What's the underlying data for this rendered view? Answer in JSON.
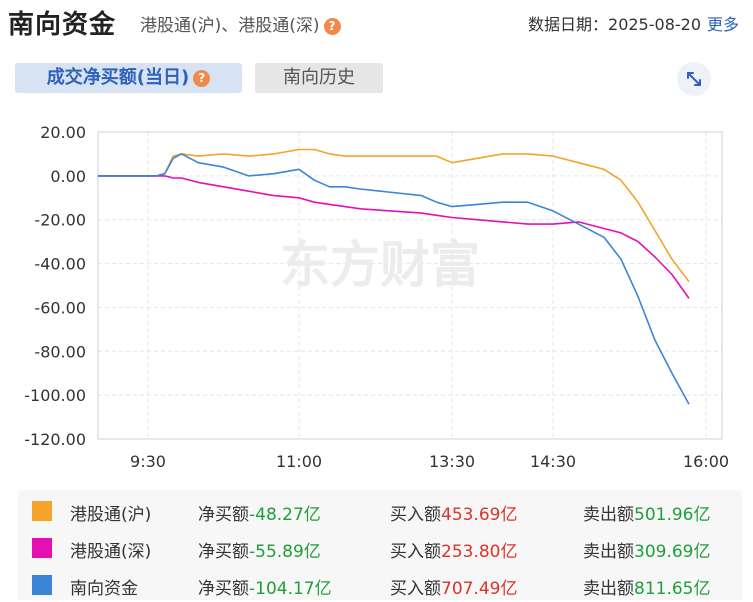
{
  "header": {
    "title": "南向资金",
    "subtitle": "港股通(沪)、港股通(深)",
    "help_glyph": "?",
    "date_label": "数据日期：",
    "date_value": "2025-08-20",
    "more_label": "更多"
  },
  "tabs": [
    {
      "label": "成交净买额(当日)",
      "active": true
    },
    {
      "label": "南向历史",
      "active": false
    }
  ],
  "icons": {
    "help": "help-icon",
    "expand": "expand-icon"
  },
  "watermark": "东方财富",
  "chart_data": {
    "type": "line",
    "y_ticks": [
      "20.00",
      "0.00",
      "-20.00",
      "-40.00",
      "-60.00",
      "-80.00",
      "-100.00",
      "-120.00"
    ],
    "x_ticks": [
      "9:30",
      "11:00",
      "13:30",
      "14:30",
      "16:00"
    ],
    "ylim": [
      -120,
      20
    ],
    "series": [
      {
        "name": "港股通(沪)",
        "color": "#f5a32b",
        "points": [
          [
            "9:00",
            0
          ],
          [
            "9:35",
            0
          ],
          [
            "9:40",
            1
          ],
          [
            "9:45",
            9
          ],
          [
            "9:50",
            10
          ],
          [
            "10:00",
            9
          ],
          [
            "10:15",
            10
          ],
          [
            "10:30",
            9
          ],
          [
            "10:45",
            10
          ],
          [
            "11:00",
            12
          ],
          [
            "11:15",
            12
          ],
          [
            "11:30",
            10
          ],
          [
            "11:45",
            9
          ],
          [
            "12:00",
            9
          ],
          [
            "13:00",
            9
          ],
          [
            "13:15",
            9
          ],
          [
            "13:30",
            6
          ],
          [
            "13:45",
            8
          ],
          [
            "14:00",
            10
          ],
          [
            "14:15",
            10
          ],
          [
            "14:30",
            9
          ],
          [
            "14:45",
            6
          ],
          [
            "15:00",
            3
          ],
          [
            "15:10",
            -2
          ],
          [
            "15:20",
            -12
          ],
          [
            "15:30",
            -25
          ],
          [
            "15:40",
            -38
          ],
          [
            "15:50",
            -48.27
          ]
        ]
      },
      {
        "name": "港股通(深)",
        "color": "#e60fb4",
        "points": [
          [
            "9:00",
            0
          ],
          [
            "9:35",
            0
          ],
          [
            "9:40",
            0
          ],
          [
            "9:45",
            -1
          ],
          [
            "9:50",
            -1
          ],
          [
            "10:00",
            -3
          ],
          [
            "10:15",
            -5
          ],
          [
            "10:30",
            -7
          ],
          [
            "10:45",
            -9
          ],
          [
            "11:00",
            -10
          ],
          [
            "11:15",
            -12
          ],
          [
            "11:30",
            -13
          ],
          [
            "11:45",
            -14
          ],
          [
            "12:00",
            -15
          ],
          [
            "13:00",
            -17
          ],
          [
            "13:15",
            -18
          ],
          [
            "13:30",
            -19
          ],
          [
            "13:45",
            -20
          ],
          [
            "14:00",
            -21
          ],
          [
            "14:15",
            -22
          ],
          [
            "14:30",
            -22
          ],
          [
            "14:45",
            -21
          ],
          [
            "15:00",
            -24
          ],
          [
            "15:10",
            -26
          ],
          [
            "15:20",
            -30
          ],
          [
            "15:30",
            -37
          ],
          [
            "15:40",
            -45
          ],
          [
            "15:50",
            -55.89
          ]
        ]
      },
      {
        "name": "南向资金",
        "color": "#3b84d6",
        "points": [
          [
            "9:00",
            0
          ],
          [
            "9:35",
            0
          ],
          [
            "9:40",
            1
          ],
          [
            "9:45",
            8
          ],
          [
            "9:50",
            10
          ],
          [
            "10:00",
            6
          ],
          [
            "10:15",
            4
          ],
          [
            "10:30",
            0
          ],
          [
            "10:45",
            1
          ],
          [
            "11:00",
            3
          ],
          [
            "11:15",
            -2
          ],
          [
            "11:30",
            -5
          ],
          [
            "11:45",
            -5
          ],
          [
            "12:00",
            -6
          ],
          [
            "13:00",
            -9
          ],
          [
            "13:15",
            -12
          ],
          [
            "13:30",
            -14
          ],
          [
            "13:45",
            -13
          ],
          [
            "14:00",
            -12
          ],
          [
            "14:15",
            -12
          ],
          [
            "14:30",
            -16
          ],
          [
            "14:45",
            -22
          ],
          [
            "15:00",
            -28
          ],
          [
            "15:10",
            -38
          ],
          [
            "15:20",
            -55
          ],
          [
            "15:30",
            -75
          ],
          [
            "15:40",
            -90
          ],
          [
            "15:50",
            -104.17
          ]
        ]
      }
    ]
  },
  "legend": {
    "net_label": "净买额",
    "buy_label": "买入额",
    "sell_label": "卖出额",
    "rows": [
      {
        "name": "港股通(沪)",
        "color": "#f5a32b",
        "net": "-48.27亿",
        "buy": "453.69亿",
        "sell": "501.96亿"
      },
      {
        "name": "港股通(深)",
        "color": "#e60fb4",
        "net": "-55.89亿",
        "buy": "253.80亿",
        "sell": "309.69亿"
      },
      {
        "name": "南向资金",
        "color": "#3b84d6",
        "net": "-104.17亿",
        "buy": "707.49亿",
        "sell": "811.65亿"
      }
    ]
  }
}
